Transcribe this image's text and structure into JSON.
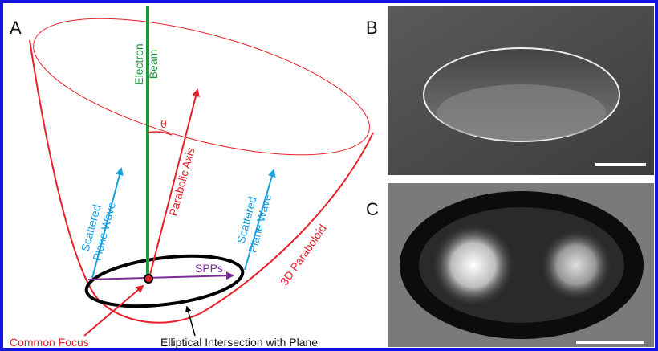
{
  "panel_a": {
    "label": "A",
    "electron_beam": [
      "Electron",
      "Beam"
    ],
    "theta": "θ",
    "parabolic_axis": "Parabolic Axis",
    "scattered_left": [
      "Scattered",
      "Plane Wave"
    ],
    "scattered_right": [
      "Scattered",
      "Plane Wave"
    ],
    "paraboloid": "3D Paraboloid",
    "spps": "SPPs",
    "common_focus": "Common Focus",
    "intersection": "Elliptical Intersection with Plane"
  },
  "panel_b": {
    "label": "B"
  },
  "panel_c": {
    "label": "C"
  }
}
